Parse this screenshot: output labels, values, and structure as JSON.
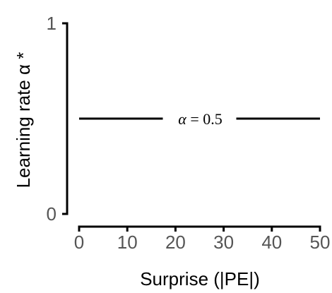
{
  "chart_data": {
    "type": "line",
    "xlabel": "Surprise (|PE|)",
    "ylabel": "Learning rate α *",
    "xlim": [
      0,
      50
    ],
    "ylim": [
      0,
      1
    ],
    "xticks": [
      0,
      10,
      20,
      30,
      40,
      50
    ],
    "yticks": [
      0,
      1
    ],
    "grid": false,
    "series": [
      {
        "x": [
          0,
          50
        ],
        "values": [
          0.5,
          0.5
        ]
      }
    ],
    "annotations": [
      {
        "text_alpha": "α",
        "text_rest": " = 0.5",
        "x": 25,
        "y": 0.5
      }
    ],
    "colors": {
      "line": "#000000",
      "tick_label": "#555555"
    }
  }
}
